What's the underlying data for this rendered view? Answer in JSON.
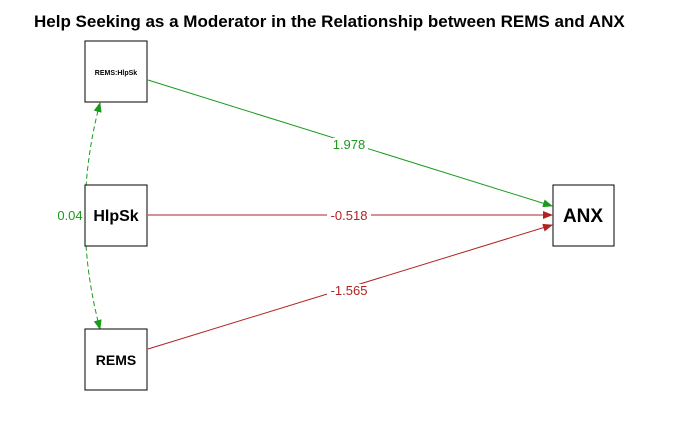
{
  "title": "Help Seeking as a Moderator in the Relationship between REMS and ANX",
  "colors": {
    "positive": "#1a9a1a",
    "negative": "#b22222",
    "node_border": "#000000",
    "background": "#ffffff"
  },
  "nodes": {
    "interaction": {
      "label": "REMS:HlpSk"
    },
    "helpseeking": {
      "label": "HlpSk"
    },
    "rems": {
      "label": "REMS"
    },
    "anx": {
      "label": "ANX"
    }
  },
  "paths": {
    "interaction_to_anx": {
      "label": "1.978",
      "sign": "positive"
    },
    "helpseeking_to_anx": {
      "label": "-0.518",
      "sign": "negative"
    },
    "rems_to_anx": {
      "label": "-1.565",
      "sign": "negative"
    },
    "covariance_interaction_rems": {
      "label": "0.04",
      "sign": "positive"
    }
  }
}
